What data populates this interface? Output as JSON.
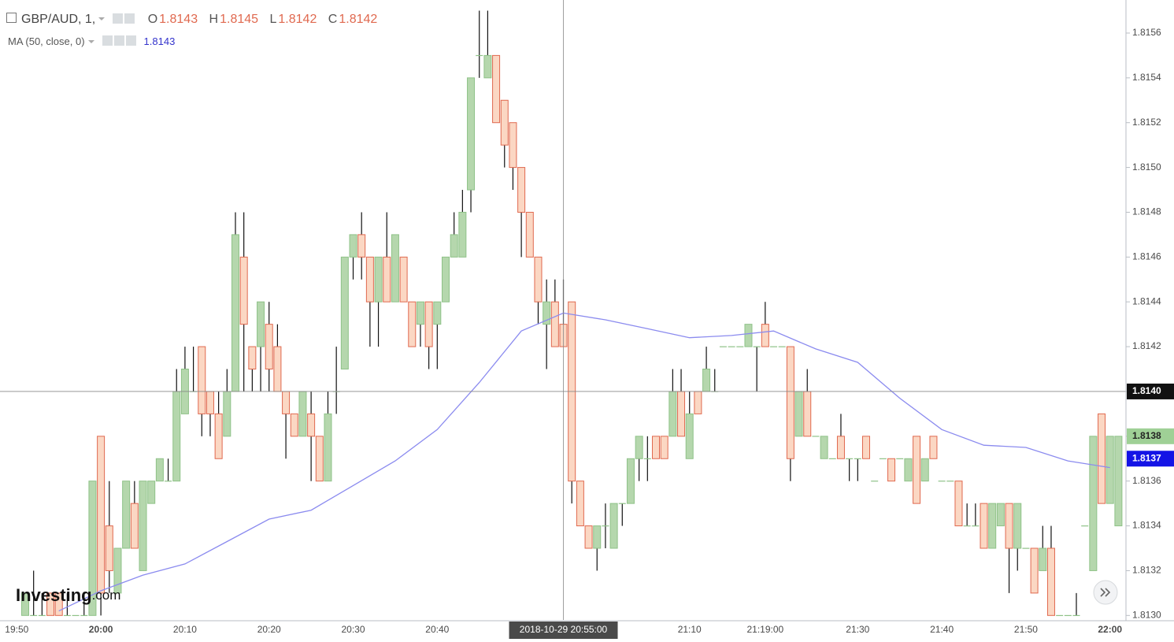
{
  "header": {
    "symbol": "GBP/AUD, 1,",
    "open_label": "O",
    "open": "1.8143",
    "high_label": "H",
    "high": "1.8145",
    "low_label": "L",
    "low": "1.8142",
    "close_label": "C",
    "close": "1.8142",
    "indicator": "MA (50, close, 0)",
    "indicator_value": "1.8143"
  },
  "logo": {
    "main": "Investing",
    "suffix": ".com"
  },
  "chart_data": {
    "type": "candlestick",
    "up_color": "#b5d7ad",
    "up_edge": "#8fc288",
    "down_color": "#fbd7c3",
    "down_edge": "#e0694f",
    "x": [
      "19:51",
      "19:52",
      "19:53",
      "19:54",
      "19:55",
      "19:56",
      "19:57",
      "19:58",
      "19:59",
      "20:00",
      "20:01",
      "20:02",
      "20:03",
      "20:04",
      "20:05",
      "20:06",
      "20:07",
      "20:08",
      "20:09",
      "20:10",
      "20:11",
      "20:12",
      "20:13",
      "20:14",
      "20:15",
      "20:16",
      "20:17",
      "20:18",
      "20:19",
      "20:20",
      "20:21",
      "20:22",
      "20:23",
      "20:24",
      "20:25",
      "20:26",
      "20:27",
      "20:28",
      "20:29",
      "20:30",
      "20:31",
      "20:32",
      "20:33",
      "20:34",
      "20:35",
      "20:36",
      "20:37",
      "20:38",
      "20:39",
      "20:40",
      "20:41",
      "20:42",
      "20:43",
      "20:44",
      "20:45",
      "20:46",
      "20:47",
      "20:48",
      "20:49",
      "20:50",
      "20:51",
      "20:52",
      "20:53",
      "20:54",
      "20:55",
      "20:56",
      "20:57",
      "20:58",
      "20:59",
      "21:00",
      "21:01",
      "21:02",
      "21:03",
      "21:04",
      "21:05",
      "21:06",
      "21:07",
      "21:08",
      "21:09",
      "21:10",
      "21:11",
      "21:12",
      "21:13",
      "21:14",
      "21:15",
      "21:16",
      "21:17",
      "21:18",
      "21:19",
      "21:20",
      "21:21",
      "21:22",
      "21:23",
      "21:24",
      "21:25",
      "21:26",
      "21:27",
      "21:28",
      "21:29",
      "21:30",
      "21:31",
      "21:32",
      "21:33",
      "21:34",
      "21:35",
      "21:36",
      "21:37",
      "21:38",
      "21:39",
      "21:40",
      "21:41",
      "21:42",
      "21:43",
      "21:44",
      "21:45",
      "21:46",
      "21:47",
      "21:48",
      "21:49",
      "21:50",
      "21:51",
      "21:52",
      "21:53",
      "21:54",
      "21:55",
      "21:56",
      "21:57",
      "21:58",
      "21:59",
      "22:00",
      "22:01"
    ],
    "open": [
      1.813,
      1.813,
      1.813,
      1.8131,
      1.8131,
      1.813,
      1.813,
      1.813,
      1.813,
      1.8138,
      1.8134,
      1.8131,
      1.8133,
      1.8135,
      1.8132,
      1.8135,
      1.8136,
      1.8136,
      1.8136,
      1.8139,
      1.814,
      1.8142,
      1.814,
      1.8139,
      1.8138,
      1.814,
      1.8146,
      1.8142,
      1.8142,
      1.8143,
      1.8142,
      1.814,
      1.8139,
      1.8138,
      1.8139,
      1.8138,
      1.8136,
      1.814,
      1.8141,
      1.8146,
      1.8147,
      1.8146,
      1.8144,
      1.8146,
      1.8144,
      1.8146,
      1.8144,
      1.8143,
      1.8144,
      1.8143,
      1.8144,
      1.8146,
      1.8146,
      1.8149,
      1.8155,
      1.8154,
      1.8155,
      1.8153,
      1.8152,
      1.815,
      1.8148,
      1.8146,
      1.8143,
      1.8144,
      1.8143,
      1.8144,
      1.8136,
      1.8134,
      1.8133,
      1.8134,
      1.8133,
      1.8135,
      1.8135,
      1.8137,
      1.8137,
      1.8138,
      1.8138,
      1.8138,
      1.814,
      1.8137,
      1.814,
      1.814,
      1.814,
      1.8142,
      1.8142,
      1.8142,
      1.8142,
      1.8142,
      1.8143,
      1.8142,
      1.8142,
      1.8142,
      1.8138,
      1.814,
      1.8138,
      1.8137,
      1.8137,
      1.8138,
      1.8137,
      1.8137,
      1.8138,
      1.8136,
      1.8137,
      1.8137,
      1.8137,
      1.8136,
      1.8138,
      1.8136,
      1.8138,
      1.8136,
      1.8136,
      1.8136,
      1.8134,
      1.8134,
      1.8135,
      1.8133,
      1.8134,
      1.8135,
      1.8133,
      1.8133,
      1.8133,
      1.8132,
      1.8133,
      1.813,
      1.813,
      1.813,
      1.8134,
      1.8132,
      1.8139,
      1.8135,
      1.8134
    ],
    "high": [
      1.8131,
      1.8132,
      1.8131,
      1.8131,
      1.8131,
      1.8131,
      1.813,
      1.8131,
      1.8136,
      1.8138,
      1.8136,
      1.8133,
      1.8136,
      1.8136,
      1.8136,
      1.8136,
      1.8137,
      1.8137,
      1.8141,
      1.8142,
      1.8142,
      1.8142,
      1.814,
      1.814,
      1.8141,
      1.8148,
      1.8148,
      1.8142,
      1.8144,
      1.8144,
      1.8143,
      1.814,
      1.8139,
      1.814,
      1.814,
      1.8138,
      1.814,
      1.8142,
      1.8146,
      1.8147,
      1.8148,
      1.8146,
      1.8146,
      1.8148,
      1.8147,
      1.8146,
      1.8144,
      1.8144,
      1.8144,
      1.8144,
      1.8146,
      1.8148,
      1.8149,
      1.8154,
      1.8157,
      1.8157,
      1.8155,
      1.8153,
      1.8152,
      1.815,
      1.8148,
      1.8146,
      1.8145,
      1.8145,
      1.8145,
      1.8144,
      1.8136,
      1.8134,
      1.8134,
      1.8135,
      1.8135,
      1.8135,
      1.8137,
      1.8138,
      1.8138,
      1.8138,
      1.8138,
      1.8141,
      1.8141,
      1.814,
      1.814,
      1.8142,
      1.8141,
      1.8142,
      1.8142,
      1.8142,
      1.8143,
      1.8142,
      1.8144,
      1.8142,
      1.8142,
      1.8142,
      1.814,
      1.8141,
      1.8138,
      1.8138,
      1.8137,
      1.8139,
      1.8137,
      1.8137,
      1.8138,
      1.8136,
      1.8137,
      1.8137,
      1.8137,
      1.8137,
      1.8138,
      1.8137,
      1.8138,
      1.8136,
      1.8136,
      1.8136,
      1.8135,
      1.8135,
      1.8135,
      1.8135,
      1.8135,
      1.8135,
      1.8135,
      1.8133,
      1.8133,
      1.8134,
      1.8134,
      1.813,
      1.813,
      1.8131,
      1.8134,
      1.8138,
      1.8139,
      1.8138,
      1.8138
    ],
    "low": [
      1.813,
      1.813,
      1.813,
      1.813,
      1.813,
      1.813,
      1.813,
      1.813,
      1.813,
      1.813,
      1.8131,
      1.8131,
      1.8133,
      1.8133,
      1.8132,
      1.8135,
      1.8136,
      1.8136,
      1.8136,
      1.8139,
      1.814,
      1.8138,
      1.8138,
      1.8137,
      1.8138,
      1.814,
      1.814,
      1.814,
      1.814,
      1.814,
      1.814,
      1.8137,
      1.8138,
      1.8138,
      1.8136,
      1.8136,
      1.8136,
      1.8139,
      1.8141,
      1.8145,
      1.8145,
      1.8142,
      1.8142,
      1.8144,
      1.8144,
      1.8144,
      1.8142,
      1.8142,
      1.8141,
      1.8141,
      1.8144,
      1.8146,
      1.8146,
      1.8148,
      1.8154,
      1.8154,
      1.8152,
      1.815,
      1.8149,
      1.8146,
      1.8146,
      1.8143,
      1.8141,
      1.8142,
      1.8142,
      1.8135,
      1.8134,
      1.8133,
      1.8132,
      1.8133,
      1.8133,
      1.8134,
      1.8135,
      1.8136,
      1.8136,
      1.8137,
      1.8137,
      1.8138,
      1.8138,
      1.8137,
      1.8139,
      1.814,
      1.814,
      1.8142,
      1.8142,
      1.8142,
      1.8142,
      1.814,
      1.8142,
      1.8142,
      1.8142,
      1.8136,
      1.8138,
      1.8138,
      1.8138,
      1.8137,
      1.8137,
      1.8137,
      1.8136,
      1.8136,
      1.8137,
      1.8136,
      1.8137,
      1.8136,
      1.8137,
      1.8136,
      1.8135,
      1.8136,
      1.8137,
      1.8136,
      1.8136,
      1.8134,
      1.8134,
      1.8134,
      1.8133,
      1.8133,
      1.8134,
      1.8131,
      1.8132,
      1.8133,
      1.8131,
      1.8132,
      1.813,
      1.813,
      1.813,
      1.813,
      1.8134,
      1.8132,
      1.8135,
      1.8135,
      1.8134
    ],
    "close": [
      1.8131,
      1.813,
      1.813,
      1.813,
      1.813,
      1.813,
      1.813,
      1.813,
      1.8136,
      1.8131,
      1.8132,
      1.8133,
      1.8136,
      1.8133,
      1.8136,
      1.8136,
      1.8137,
      1.8136,
      1.814,
      1.8141,
      1.814,
      1.8139,
      1.8139,
      1.8137,
      1.814,
      1.8147,
      1.8143,
      1.8141,
      1.8144,
      1.8141,
      1.814,
      1.8139,
      1.8138,
      1.814,
      1.8138,
      1.8136,
      1.8139,
      1.814,
      1.8146,
      1.8147,
      1.8146,
      1.8144,
      1.8146,
      1.8144,
      1.8147,
      1.8144,
      1.8142,
      1.8144,
      1.8142,
      1.8144,
      1.8146,
      1.8147,
      1.8148,
      1.8154,
      1.8155,
      1.8155,
      1.8152,
      1.8151,
      1.815,
      1.8148,
      1.8146,
      1.8144,
      1.8144,
      1.8142,
      1.8142,
      1.8136,
      1.8134,
      1.8133,
      1.8134,
      1.8134,
      1.8135,
      1.8135,
      1.8137,
      1.8138,
      1.8137,
      1.8137,
      1.8137,
      1.814,
      1.8138,
      1.8139,
      1.8139,
      1.8141,
      1.814,
      1.8142,
      1.8142,
      1.8142,
      1.8143,
      1.8142,
      1.8142,
      1.8142,
      1.8142,
      1.8137,
      1.814,
      1.8138,
      1.8138,
      1.8138,
      1.8137,
      1.8137,
      1.8137,
      1.8137,
      1.8137,
      1.8136,
      1.8137,
      1.8136,
      1.8137,
      1.8137,
      1.8135,
      1.8137,
      1.8137,
      1.8136,
      1.8136,
      1.8134,
      1.8134,
      1.8134,
      1.8133,
      1.8135,
      1.8135,
      1.8133,
      1.8135,
      1.8133,
      1.8131,
      1.8133,
      1.813,
      1.813,
      1.813,
      1.813,
      1.8134,
      1.8138,
      1.8135,
      1.8138,
      1.8138
    ],
    "ma": {
      "color": "#8b8bef",
      "x": [
        "19:55",
        "20:00",
        "20:05",
        "20:10",
        "20:15",
        "20:20",
        "20:25",
        "20:30",
        "20:35",
        "20:40",
        "20:45",
        "20:50",
        "20:55",
        "21:00",
        "21:05",
        "21:10",
        "21:15",
        "21:20",
        "21:25",
        "21:30",
        "21:35",
        "21:40",
        "21:45",
        "21:50",
        "21:55",
        "22:00"
      ],
      "values": [
        1.81302,
        1.81311,
        1.81318,
        1.81323,
        1.81333,
        1.81343,
        1.81347,
        1.81358,
        1.81369,
        1.81383,
        1.81404,
        1.81427,
        1.81435,
        1.81432,
        1.81428,
        1.81424,
        1.81425,
        1.81427,
        1.81419,
        1.81413,
        1.81397,
        1.81383,
        1.81376,
        1.81375,
        1.81369,
        1.81366
      ]
    },
    "ylim": [
      1.81298,
      1.81573
    ],
    "yticks": [
      {
        "value": 1.813,
        "label": "1.8130"
      },
      1.8132,
      1.8134,
      1.8136,
      1.8138,
      {
        "value": 1.814,
        "label": "1.8140"
      },
      1.8142,
      1.8144,
      1.8146,
      1.8148,
      {
        "value": 1.815,
        "label": "1.8150"
      },
      1.8152,
      1.8154,
      1.8156
    ],
    "xticks": [
      "19:50",
      "20:00",
      "20:10",
      "20:20",
      "20:30",
      "20:40",
      "21:10",
      {
        "value": "21:19",
        "label": "21:19:00"
      },
      "21:30",
      "21:40",
      "21:50",
      "22:00"
    ],
    "grid": true,
    "crosshair": {
      "x": "20:55",
      "x_label": "2018-10-29 20:55:00",
      "y": 1.814,
      "y_label": "1.8140"
    },
    "price_tags": [
      {
        "value": 1.8138,
        "label": "1.8138",
        "color": "#9fd096",
        "text_color": "#222222"
      },
      {
        "value": 1.8137,
        "label": "1.8137",
        "color": "#1414e6",
        "text_color": "#ffffff"
      }
    ]
  }
}
